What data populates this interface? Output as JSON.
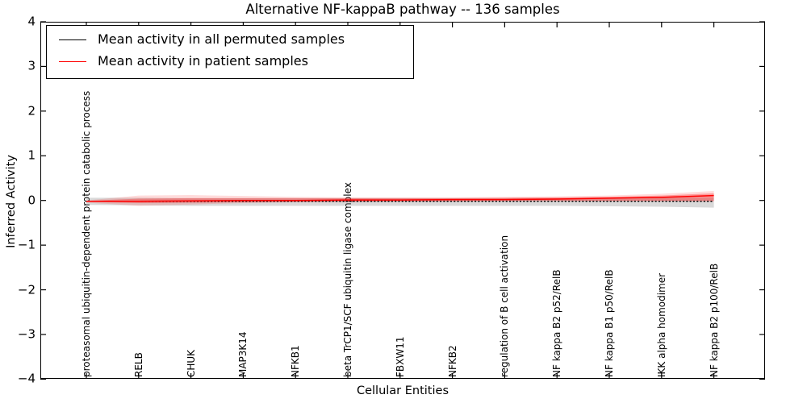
{
  "title": "Alternative NF-kappaB pathway -- 136 samples",
  "axes": {
    "xlabel": "Cellular Entities",
    "ylabel": "Inferred Activity",
    "ytick_labels": [
      "4",
      "3",
      "2",
      "1",
      "0",
      "−1",
      "−2",
      "−3",
      "−4"
    ],
    "ytick_values": [
      4,
      3,
      2,
      1,
      0,
      -1,
      -2,
      -3,
      -4
    ]
  },
  "legend": {
    "items": [
      {
        "label": "Mean activity in all permuted samples",
        "color": "#000000"
      },
      {
        "label": "Mean activity in patient samples",
        "color": "#ff0000"
      }
    ]
  },
  "chart_data": {
    "type": "line",
    "title": "Alternative NF-kappaB pathway -- 136 samples",
    "xlabel": "Cellular Entities",
    "ylabel": "Inferred Activity",
    "ylim": [
      -4,
      4
    ],
    "grid": false,
    "legend_position": "upper left",
    "categories": [
      "proteasomal ubiquitin-dependent protein catabolic process",
      "RELB",
      "CHUK",
      "MAP3K14",
      "NFKB1",
      "beta TrCP1/SCF ubiquitin ligase complex",
      "FBXW11",
      "NFKB2",
      "regulation of B cell activation",
      "NF kappa B2 p52/RelB",
      "NF kappa B1 p50/RelB",
      "IKK alpha homodimer",
      "NF kappa B2 p100/RelB"
    ],
    "series": [
      {
        "name": "Mean activity in all permuted samples",
        "color": "#000000",
        "style": "dotted",
        "values": [
          -0.02,
          -0.02,
          -0.02,
          -0.02,
          -0.02,
          -0.02,
          -0.02,
          -0.02,
          -0.02,
          -0.02,
          -0.02,
          -0.02,
          -0.02
        ]
      },
      {
        "name": "Mean activity in patient samples",
        "color": "#ff0000",
        "style": "solid",
        "values": [
          -0.02,
          -0.02,
          -0.01,
          0.0,
          0.0,
          0.01,
          0.01,
          0.02,
          0.02,
          0.03,
          0.05,
          0.07,
          0.11
        ]
      }
    ],
    "bands": [
      {
        "name": "permuted-samples-range",
        "color": "rgba(130,130,130,0.30)",
        "upper": [
          0.06,
          0.06,
          0.05,
          0.05,
          0.05,
          0.05,
          0.05,
          0.05,
          0.05,
          0.05,
          0.05,
          0.06,
          0.07
        ],
        "lower": [
          -0.1,
          -0.11,
          -0.12,
          -0.12,
          -0.12,
          -0.12,
          -0.12,
          -0.12,
          -0.12,
          -0.12,
          -0.13,
          -0.14,
          -0.16
        ]
      },
      {
        "name": "patient-samples-range-outer",
        "color": "rgba(255,0,0,0.14)",
        "upper": [
          0.0,
          0.11,
          0.12,
          0.1,
          0.08,
          0.07,
          0.07,
          0.07,
          0.08,
          0.09,
          0.11,
          0.15,
          0.21
        ],
        "lower": [
          -0.05,
          -0.12,
          -0.09,
          -0.06,
          -0.04,
          -0.03,
          -0.03,
          -0.02,
          -0.02,
          -0.02,
          -0.02,
          -0.02,
          -0.03
        ]
      },
      {
        "name": "patient-samples-range-inner",
        "color": "rgba(255,0,0,0.30)",
        "upper": [
          -0.01,
          0.04,
          0.05,
          0.05,
          0.05,
          0.05,
          0.05,
          0.05,
          0.06,
          0.07,
          0.08,
          0.11,
          0.16
        ],
        "lower": [
          -0.03,
          -0.06,
          -0.05,
          -0.04,
          -0.03,
          -0.03,
          -0.02,
          -0.02,
          -0.01,
          -0.01,
          -0.01,
          -0.01,
          -0.01
        ]
      }
    ]
  }
}
